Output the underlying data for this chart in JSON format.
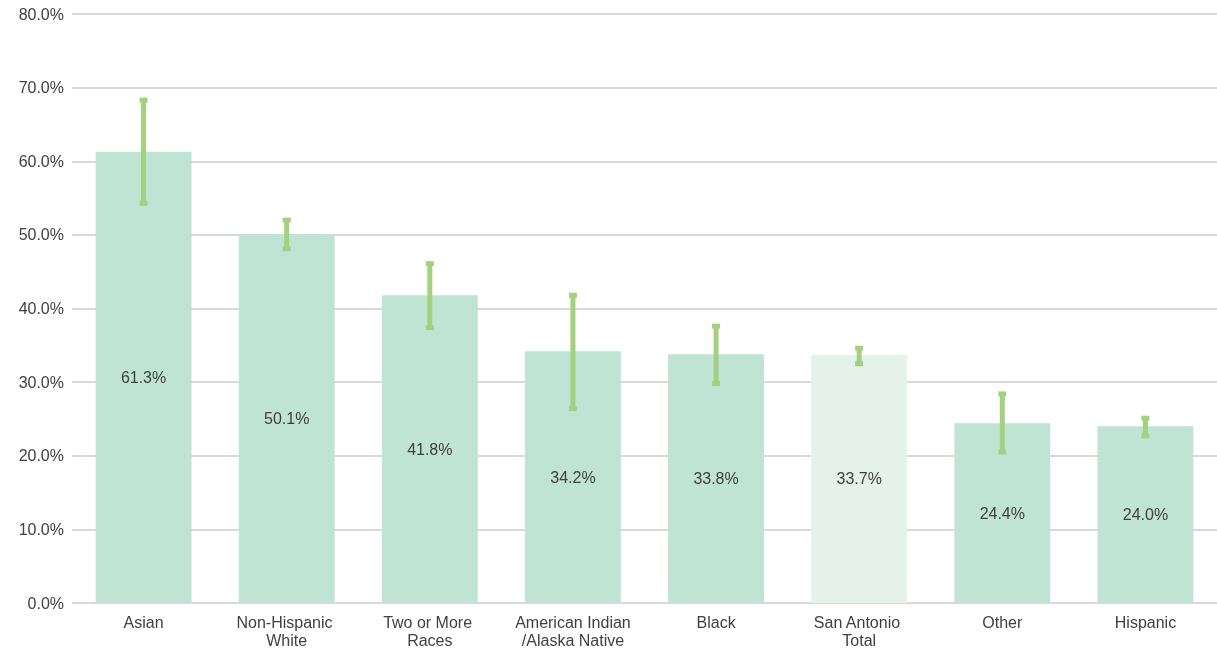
{
  "chart_data": {
    "type": "bar",
    "categories": [
      "Asian",
      "Non-Hispanic White",
      "Two or More Races",
      "American Indian/Alaska Native",
      "Black",
      "San Antonio Total",
      "Other",
      "Hispanic"
    ],
    "values": [
      61.3,
      50.1,
      41.8,
      34.2,
      33.8,
      33.7,
      24.4,
      24.0
    ],
    "colors": [
      "#bfe4d4",
      "#bfe4d4",
      "#bfe4d4",
      "#bfe4d4",
      "#bfe4d4",
      "#e4f2eb",
      "#bfe4d4",
      "#bfe4d4"
    ],
    "errors": [
      [
        54.3,
        68.3
      ],
      [
        48.1,
        52.0
      ],
      [
        37.4,
        46.1
      ],
      [
        26.4,
        41.8
      ],
      [
        29.8,
        37.6
      ],
      [
        32.5,
        34.6
      ],
      [
        20.5,
        28.4
      ],
      [
        22.7,
        25.1
      ]
    ],
    "ylim": [
      0,
      80
    ],
    "yticks": [
      {
        "value": 0,
        "label": "0.0%"
      },
      {
        "value": 10,
        "label": "10.0%"
      },
      {
        "value": 20,
        "label": "20.0%"
      },
      {
        "value": 30,
        "label": "30.0%"
      },
      {
        "value": 40,
        "label": "40.0%"
      },
      {
        "value": 50,
        "label": "50.0%"
      },
      {
        "value": 60,
        "label": "60.0%"
      },
      {
        "value": 70,
        "label": "70.0%"
      },
      {
        "value": 80,
        "label": "80.0%"
      }
    ],
    "value_labels": [
      "61.3%",
      "50.1%",
      "41.8%",
      "34.2%",
      "33.8%",
      "33.7%",
      "24.4%",
      "24.0%"
    ],
    "grid": "y"
  }
}
